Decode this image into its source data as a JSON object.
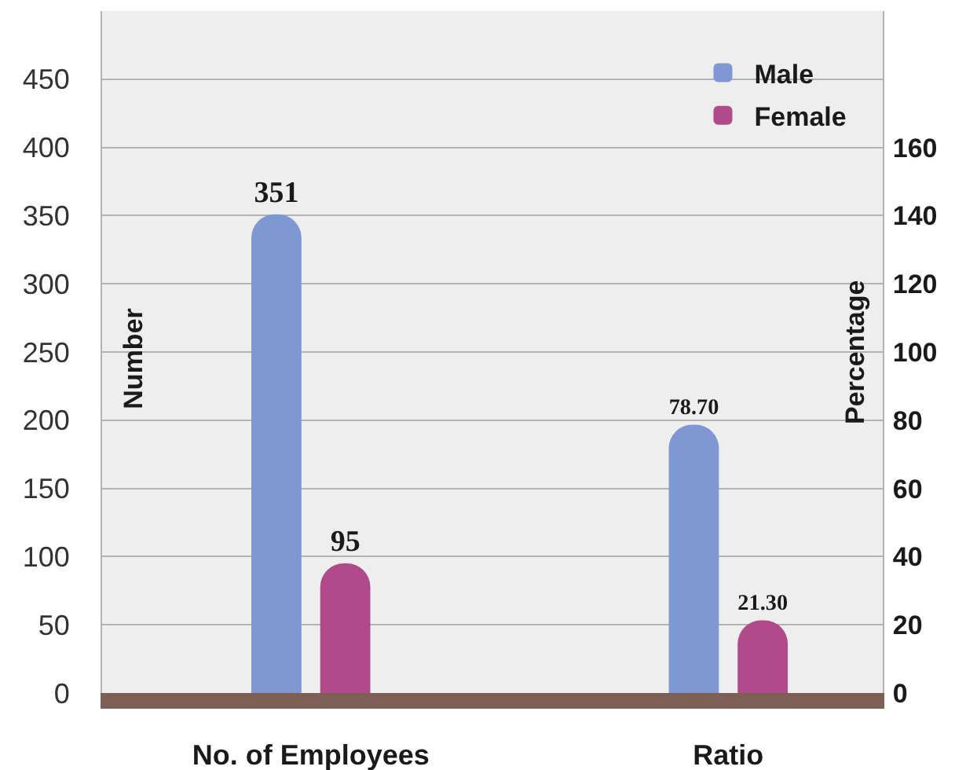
{
  "chart_data": {
    "type": "bar",
    "categories": [
      "No. of Employees",
      "Ratio"
    ],
    "ylabel": "Number",
    "y2label": "Percentage",
    "ylim": [
      0,
      500
    ],
    "yticks": [
      0,
      50,
      100,
      150,
      200,
      250,
      300,
      350,
      400,
      450
    ],
    "y2lim": [
      0,
      200
    ],
    "y2ticks": [
      0,
      20,
      40,
      60,
      80,
      100,
      120,
      140,
      160
    ],
    "grid": "y",
    "legend": "top right",
    "series": [
      {
        "name": "Male",
        "color": "#7f97d2",
        "values": [
          351,
          null
        ],
        "value_labels": [
          "351",
          null
        ]
      },
      {
        "name": "Female",
        "color": "#b04a8a",
        "values": [
          95,
          null
        ],
        "value_labels": [
          "95",
          null
        ]
      },
      {
        "color": "#7f97d2",
        "values": [
          null,
          78.7
        ],
        "value_labels": [
          null,
          "78.70"
        ],
        "axis": "y2"
      },
      {
        "color": "#b04a8a",
        "values": [
          null,
          21.3
        ],
        "value_labels": [
          null,
          "21.30"
        ],
        "axis": "y2"
      }
    ]
  }
}
